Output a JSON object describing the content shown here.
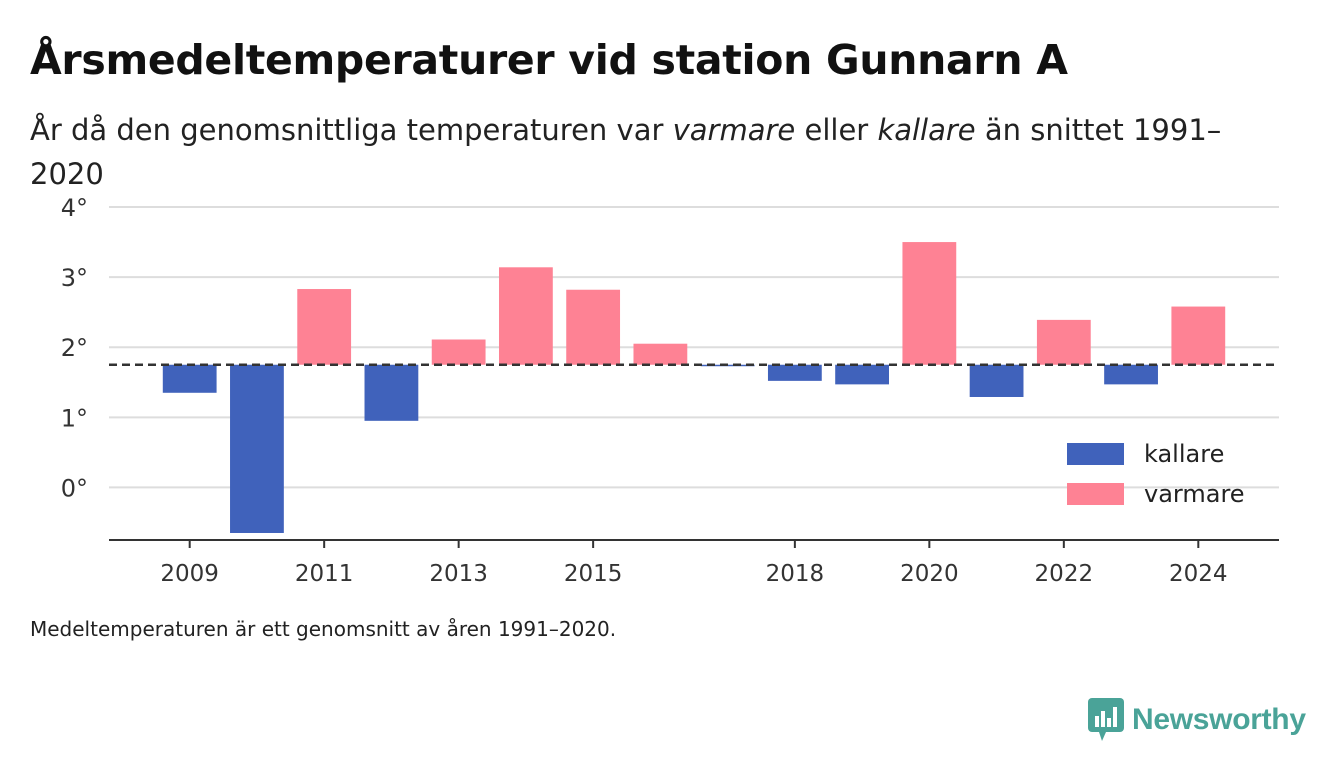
{
  "title": "Årsmedeltemperaturer vid station Gunnarn A",
  "subtitle": {
    "part1": "År då den genomsnittliga temperaturen var ",
    "warm_word": "varmare",
    "part2": " eller ",
    "cold_word": "kallare",
    "part3": " än snittet 1991–2020"
  },
  "footnote": "Medeltemperaturen är ett genomsnitt av åren 1991–2020.",
  "brand": {
    "name": "Newsworthy",
    "logo_icon": "newsworthy-chart-icon",
    "color": "#4aa398"
  },
  "chart_data": {
    "type": "bar",
    "baseline": 1.75,
    "ylim": [
      -0.75,
      4.1
    ],
    "yticks": [
      0,
      1,
      2,
      3,
      4
    ],
    "ytick_labels": [
      "0°",
      "1°",
      "2°",
      "3°",
      "4°"
    ],
    "xlim": [
      2007.8,
      2025.2
    ],
    "xticks": [
      2009,
      2011,
      2013,
      2015,
      2018,
      2020,
      2022,
      2024
    ],
    "xtick_labels": [
      "2009",
      "2011",
      "2013",
      "2015",
      "2018",
      "2020",
      "2022",
      "2024"
    ],
    "grid": true,
    "legend_position": "bottom-right",
    "colors": {
      "kallare": "#4062bb",
      "varmare": "#fe8294",
      "baseline": "#333333",
      "grid": "#dddddd"
    },
    "series": [
      {
        "name": "kallare",
        "values": [
          {
            "x": 2009,
            "y": 1.35
          },
          {
            "x": 2010,
            "y": -0.65
          },
          {
            "x": 2012,
            "y": 0.95
          },
          {
            "x": 2017,
            "y": 1.73
          },
          {
            "x": 2018,
            "y": 1.52
          },
          {
            "x": 2019,
            "y": 1.47
          },
          {
            "x": 2021,
            "y": 1.29
          },
          {
            "x": 2023,
            "y": 1.47
          }
        ]
      },
      {
        "name": "varmare",
        "values": [
          {
            "x": 2011,
            "y": 2.83
          },
          {
            "x": 2013,
            "y": 2.11
          },
          {
            "x": 2014,
            "y": 3.14
          },
          {
            "x": 2015,
            "y": 2.82
          },
          {
            "x": 2016,
            "y": 2.05
          },
          {
            "x": 2020,
            "y": 3.5
          },
          {
            "x": 2022,
            "y": 2.39
          },
          {
            "x": 2024,
            "y": 2.58
          }
        ]
      }
    ]
  }
}
